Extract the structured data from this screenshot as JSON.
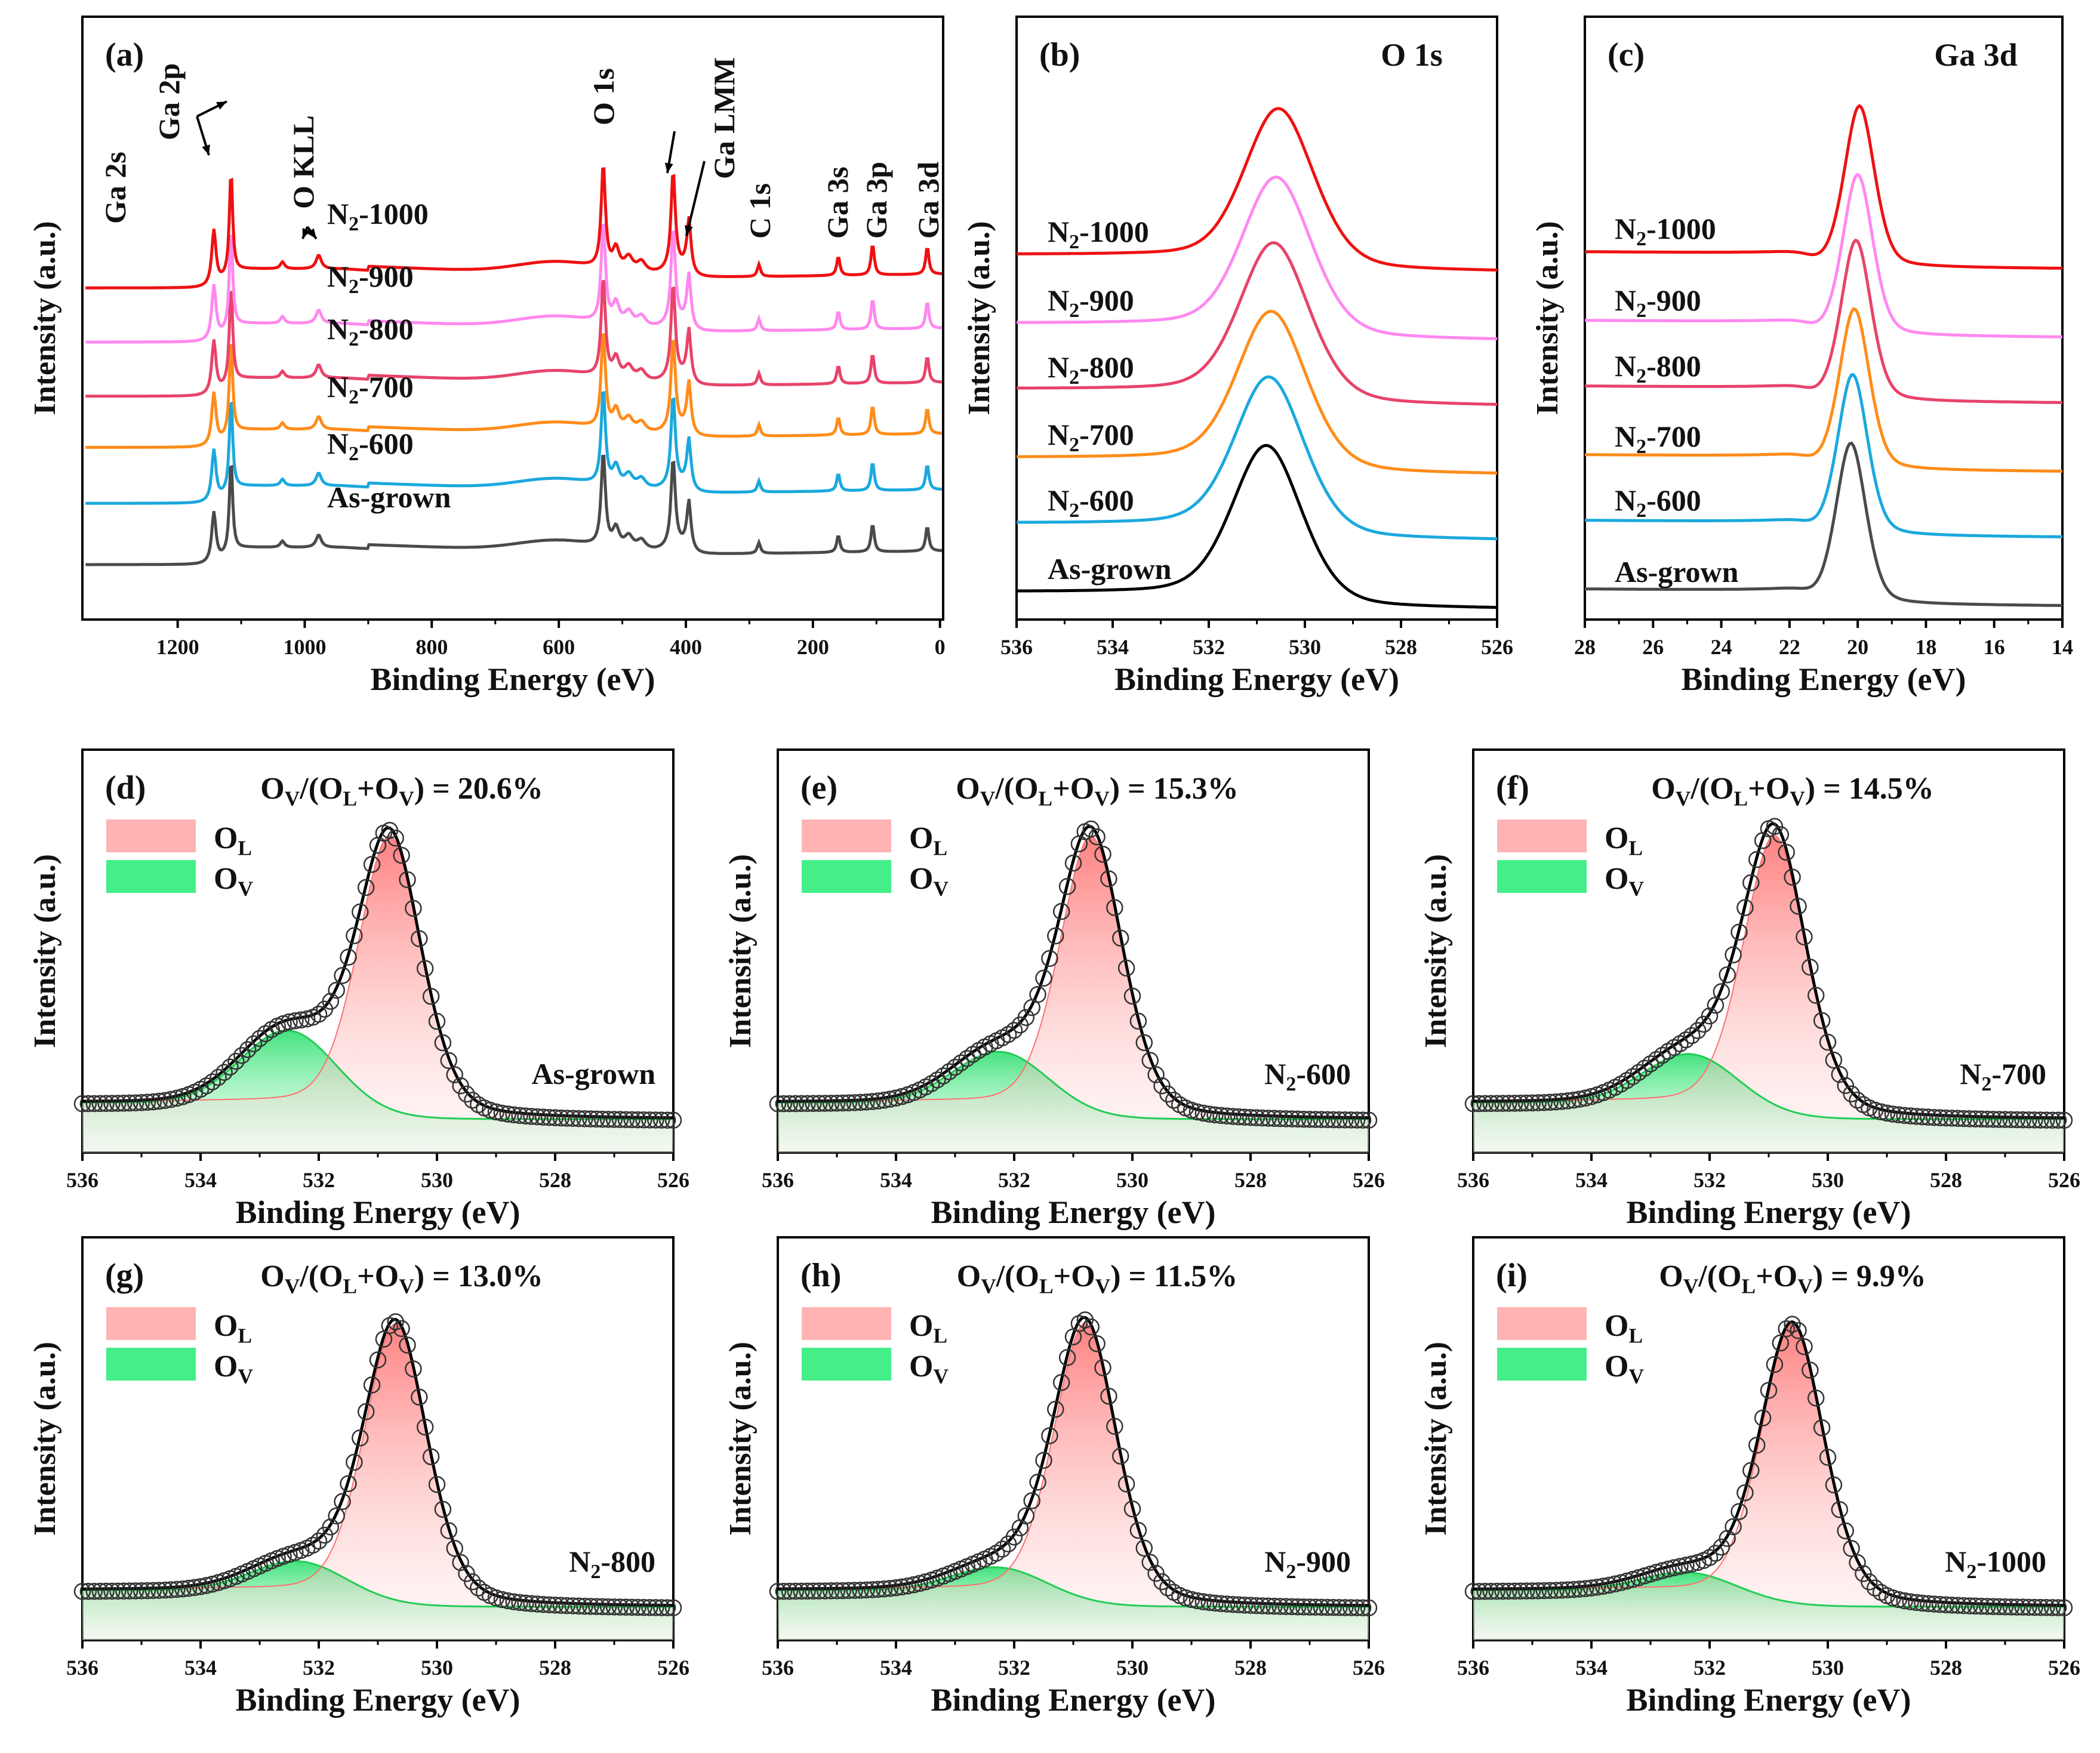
{
  "chart_data": [
    {
      "id": "a",
      "type": "line",
      "panel_label": "(a)",
      "xlabel": "Binding Energy (eV)",
      "ylabel": "Intensity (a.u.)",
      "xlim": [
        1350,
        -5
      ],
      "xticks": [
        1200,
        1000,
        800,
        600,
        400,
        200,
        0
      ],
      "series": [
        {
          "name": "As-grown",
          "label": "As-grown",
          "color": "#4a4a4a"
        },
        {
          "name": "N2-600",
          "label": "N",
          "sub": "2",
          "suffix": "-600",
          "color": "#1ba8dd"
        },
        {
          "name": "N2-700",
          "label": "N",
          "sub": "2",
          "suffix": "-700",
          "color": "#ff8c1a"
        },
        {
          "name": "N2-800",
          "label": "N",
          "sub": "2",
          "suffix": "-800",
          "color": "#e8436a"
        },
        {
          "name": "N2-900",
          "label": "N",
          "sub": "2",
          "suffix": "-900",
          "color": "#ff88f0"
        },
        {
          "name": "N2-1000",
          "label": "N",
          "sub": "2",
          "suffix": "-1000",
          "color": "#ee1111"
        }
      ],
      "annotations": [
        "Ga 2s",
        "Ga 2p",
        "O KLL",
        "O 1s",
        "Ga LMM",
        "C 1s",
        "Ga 3s",
        "Ga 3p",
        "Ga 3d"
      ]
    },
    {
      "id": "b",
      "type": "line",
      "panel_label": "(b)",
      "title": "O 1s",
      "xlabel": "Binding Energy (eV)",
      "ylabel": "Intensity (a.u.)",
      "xlim": [
        536,
        526
      ],
      "xticks": [
        536,
        534,
        532,
        530,
        528,
        526
      ],
      "peak_center": 530.8,
      "series": [
        {
          "name": "As-grown",
          "label": "As-grown",
          "color": "#000000"
        },
        {
          "name": "N2-600",
          "label": "N",
          "sub": "2",
          "suffix": "-600",
          "color": "#1ba8dd"
        },
        {
          "name": "N2-700",
          "label": "N",
          "sub": "2",
          "suffix": "-700",
          "color": "#ff8c1a"
        },
        {
          "name": "N2-800",
          "label": "N",
          "sub": "2",
          "suffix": "-800",
          "color": "#e8436a"
        },
        {
          "name": "N2-900",
          "label": "N",
          "sub": "2",
          "suffix": "-900",
          "color": "#ff88f0"
        },
        {
          "name": "N2-1000",
          "label": "N",
          "sub": "2",
          "suffix": "-1000",
          "color": "#ee1111"
        }
      ]
    },
    {
      "id": "c",
      "type": "line",
      "panel_label": "(c)",
      "title": "Ga 3d",
      "xlabel": "Binding Energy (eV)",
      "ylabel": "Intensity (a.u.)",
      "xlim": [
        28,
        14
      ],
      "xticks": [
        28,
        26,
        24,
        22,
        20,
        18,
        16,
        14
      ],
      "peak_center": 20.2,
      "series": [
        {
          "name": "As-grown",
          "label": "As-grown",
          "color": "#4a4a4a"
        },
        {
          "name": "N2-600",
          "label": "N",
          "sub": "2",
          "suffix": "-600",
          "color": "#1ba8dd"
        },
        {
          "name": "N2-700",
          "label": "N",
          "sub": "2",
          "suffix": "-700",
          "color": "#ff8c1a"
        },
        {
          "name": "N2-800",
          "label": "N",
          "sub": "2",
          "suffix": "-800",
          "color": "#e8436a"
        },
        {
          "name": "N2-900",
          "label": "N",
          "sub": "2",
          "suffix": "-900",
          "color": "#ff88f0"
        },
        {
          "name": "N2-1000",
          "label": "N",
          "sub": "2",
          "suffix": "-1000",
          "color": "#ee1111"
        }
      ]
    },
    {
      "id": "d",
      "type": "area",
      "panel_label": "(d)",
      "sample": "As-grown",
      "sample_main": "As-grown",
      "sample_sub": "",
      "sample_suffix": "",
      "ratio_text": " = 20.6%",
      "ov_ratio": 20.6,
      "ol_center": 530.8,
      "ov_center": 532.5,
      "ol_height": 1.0,
      "ov_height": 0.27,
      "xlim": [
        536,
        526
      ],
      "xticks": [
        536,
        534,
        532,
        530,
        528,
        526
      ],
      "xlabel": "Binding Energy (eV)",
      "ylabel": "Intensity (a.u.)"
    },
    {
      "id": "e",
      "type": "area",
      "panel_label": "(e)",
      "sample": "N2-600",
      "sample_main": "N",
      "sample_sub": "2",
      "sample_suffix": "-600",
      "ratio_text": " = 15.3%",
      "ov_ratio": 15.3,
      "ol_center": 530.7,
      "ov_center": 532.2,
      "ol_height": 1.0,
      "ov_height": 0.2,
      "xlim": [
        536,
        526
      ],
      "xticks": [
        536,
        534,
        532,
        530,
        528,
        526
      ],
      "xlabel": "Binding Energy (eV)",
      "ylabel": "Intensity (a.u.)"
    },
    {
      "id": "f",
      "type": "area",
      "panel_label": "(f)",
      "sample": "N2-700",
      "sample_main": "N",
      "sample_sub": "2",
      "sample_suffix": "-700",
      "ratio_text": " = 14.5%",
      "ov_ratio": 14.5,
      "ol_center": 530.9,
      "ov_center": 532.3,
      "ol_height": 1.0,
      "ov_height": 0.19,
      "xlim": [
        536,
        526
      ],
      "xticks": [
        536,
        534,
        532,
        530,
        528,
        526
      ],
      "xlabel": "Binding Energy (eV)",
      "ylabel": "Intensity (a.u.)"
    },
    {
      "id": "g",
      "type": "area",
      "panel_label": "(g)",
      "sample": "N2-800",
      "sample_main": "N",
      "sample_sub": "2",
      "sample_suffix": "-800",
      "ratio_text": " = 13.0%",
      "ov_ratio": 13.0,
      "ol_center": 530.7,
      "ov_center": 532.3,
      "ol_height": 1.0,
      "ov_height": 0.12,
      "xlim": [
        536,
        526
      ],
      "xticks": [
        536,
        534,
        532,
        530,
        528,
        526
      ],
      "xlabel": "Binding Energy (eV)",
      "ylabel": "Intensity (a.u.)"
    },
    {
      "id": "h",
      "type": "area",
      "panel_label": "(h)",
      "sample": "N2-900",
      "sample_main": "N",
      "sample_sub": "2",
      "sample_suffix": "-900",
      "ratio_text": " = 11.5%",
      "ov_ratio": 11.5,
      "ol_center": 530.8,
      "ov_center": 532.2,
      "ol_height": 1.0,
      "ov_height": 0.1,
      "xlim": [
        536,
        526
      ],
      "xticks": [
        536,
        534,
        532,
        530,
        528,
        526
      ],
      "xlabel": "Binding Energy (eV)",
      "ylabel": "Intensity (a.u.)"
    },
    {
      "id": "i",
      "type": "area",
      "panel_label": "(i)",
      "sample": "N2-1000",
      "sample_main": "N",
      "sample_sub": "2",
      "sample_suffix": "-1000",
      "ratio_text": " = 9.9%",
      "ov_ratio": 9.9,
      "ol_center": 530.6,
      "ov_center": 532.3,
      "ol_height": 1.0,
      "ov_height": 0.08,
      "xlim": [
        536,
        526
      ],
      "xticks": [
        536,
        534,
        532,
        530,
        528,
        526
      ],
      "xlabel": "Binding Energy (eV)",
      "ylabel": "Intensity (a.u.)"
    }
  ],
  "ratio_label": {
    "ov_main": "O",
    "ov_sub": "V",
    "ol_main": "O",
    "ol_sub": "L"
  },
  "legend": [
    {
      "key": "ol",
      "main": "O",
      "sub": "L",
      "color": "#ffb3b3"
    },
    {
      "key": "ov",
      "main": "O",
      "sub": "V",
      "color": "#44ee88"
    }
  ]
}
